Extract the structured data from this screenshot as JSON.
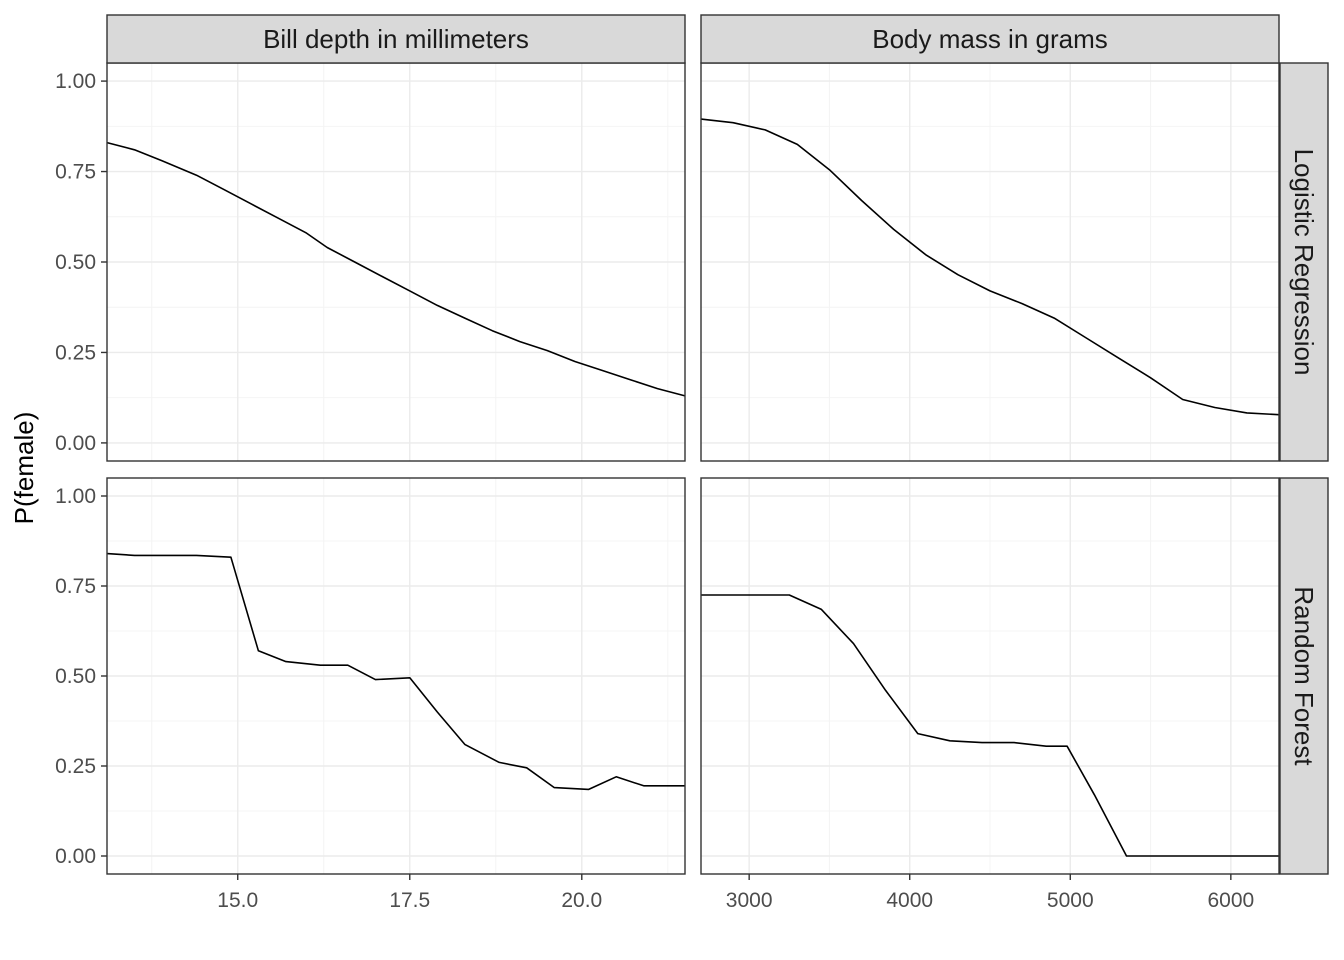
{
  "chart_data": {
    "type": "line",
    "ylabel": "P(female)",
    "xlabel": "",
    "ylim": [
      -0.05,
      1.05
    ],
    "y_ticks": [
      0.0,
      0.25,
      0.5,
      0.75,
      1.0
    ],
    "y_tick_labels": [
      "0.00",
      "0.25",
      "0.50",
      "0.75",
      "1.00"
    ],
    "grid": true,
    "line_color": "#000000",
    "columns": [
      {
        "title": "Bill depth in millimeters",
        "xlim": [
          13.1,
          21.5
        ],
        "x_ticks": [
          15.0,
          17.5,
          20.0
        ],
        "x_tick_labels": [
          "15.0",
          "17.5",
          "20.0"
        ]
      },
      {
        "title": "Body mass in grams",
        "xlim": [
          2700,
          6300
        ],
        "x_ticks": [
          3000,
          4000,
          5000,
          6000
        ],
        "x_tick_labels": [
          "3000",
          "4000",
          "5000",
          "6000"
        ]
      }
    ],
    "rows": [
      {
        "title": "Logistic Regression",
        "series": [
          {
            "x": [
              13.1,
              13.5,
              13.9,
              14.4,
              14.8,
              15.2,
              15.6,
              16.0,
              16.3,
              16.7,
              17.1,
              17.5,
              17.9,
              18.3,
              18.7,
              19.1,
              19.5,
              19.9,
              20.3,
              20.7,
              21.1,
              21.5
            ],
            "y": [
              0.83,
              0.81,
              0.78,
              0.74,
              0.7,
              0.66,
              0.62,
              0.58,
              0.54,
              0.5,
              0.46,
              0.42,
              0.38,
              0.345,
              0.31,
              0.28,
              0.255,
              0.225,
              0.2,
              0.175,
              0.15,
              0.13
            ]
          },
          {
            "x": [
              2700,
              2900,
              3100,
              3300,
              3500,
              3700,
              3900,
              4100,
              4300,
              4500,
              4700,
              4900,
              5100,
              5300,
              5500,
              5700,
              5900,
              6100,
              6300
            ],
            "y": [
              0.895,
              0.885,
              0.865,
              0.825,
              0.755,
              0.67,
              0.59,
              0.52,
              0.465,
              0.42,
              0.385,
              0.345,
              0.29,
              0.235,
              0.18,
              0.12,
              0.098,
              0.083,
              0.078
            ]
          }
        ]
      },
      {
        "title": "Random Forest",
        "series": [
          {
            "x": [
              13.1,
              13.5,
              14.0,
              14.4,
              14.9,
              15.3,
              15.7,
              16.2,
              16.6,
              17.0,
              17.5,
              17.9,
              18.3,
              18.8,
              19.2,
              19.6,
              20.1,
              20.5,
              20.9,
              21.5
            ],
            "y": [
              0.84,
              0.835,
              0.835,
              0.835,
              0.83,
              0.57,
              0.54,
              0.53,
              0.53,
              0.49,
              0.495,
              0.4,
              0.31,
              0.26,
              0.245,
              0.19,
              0.185,
              0.22,
              0.195,
              0.195
            ]
          },
          {
            "x": [
              2700,
              2900,
              3100,
              3250,
              3450,
              3650,
              3850,
              4050,
              4250,
              4450,
              4650,
              4850,
              4980,
              5150,
              5350,
              5550,
              5750,
              5950,
              6300
            ],
            "y": [
              0.725,
              0.725,
              0.725,
              0.725,
              0.685,
              0.59,
              0.46,
              0.34,
              0.32,
              0.315,
              0.315,
              0.305,
              0.305,
              0.17,
              0.0,
              0.0,
              0.0,
              0.0,
              0.0
            ]
          }
        ]
      }
    ]
  }
}
